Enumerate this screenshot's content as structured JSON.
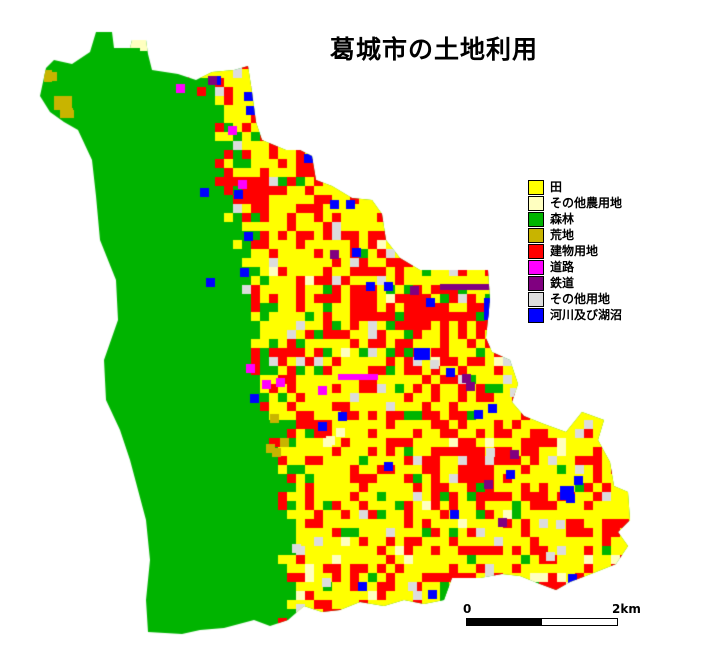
{
  "title": "葛城市の土地利用",
  "legend": [
    {
      "label": "田",
      "color": "#ffff00"
    },
    {
      "label": "その他農用地",
      "color": "#ffffc0"
    },
    {
      "label": "森林",
      "color": "#00b400"
    },
    {
      "label": "荒地",
      "color": "#c8b400"
    },
    {
      "label": "建物用地",
      "color": "#ff0000"
    },
    {
      "label": "道路",
      "color": "#ff00ff"
    },
    {
      "label": "鉄道",
      "color": "#800080"
    },
    {
      "label": "その他用地",
      "color": "#dcdcdc"
    },
    {
      "label": "河川及び湖沼",
      "color": "#0000ff"
    }
  ],
  "scale": {
    "start_label": "0",
    "end_label": "2km"
  }
}
